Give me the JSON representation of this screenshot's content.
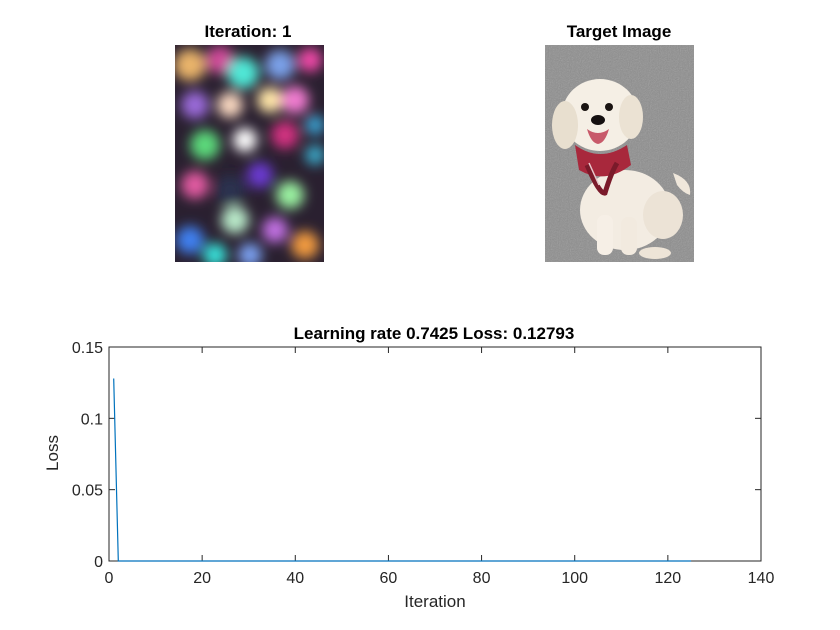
{
  "images": {
    "left_title": "Iteration: 1",
    "right_title": "Target Image"
  },
  "chart_data": {
    "type": "line",
    "title": "Learning rate 0.7425  Loss: 0.12793",
    "xlabel": "Iteration",
    "ylabel": "Loss",
    "xlim": [
      0,
      140
    ],
    "ylim": [
      0,
      0.15
    ],
    "xticks": [
      0,
      20,
      40,
      60,
      80,
      100,
      120,
      140
    ],
    "yticks": [
      0,
      0.05,
      0.1,
      0.15
    ],
    "xtick_labels": [
      "0",
      "20",
      "40",
      "60",
      "80",
      "100",
      "120",
      "140"
    ],
    "ytick_labels": [
      "0",
      "0.05",
      "0.1",
      "0.15"
    ],
    "grid": false,
    "series": [
      {
        "name": "Loss",
        "color": "#0072BD",
        "x": [
          1,
          2,
          3,
          125
        ],
        "y": [
          0.12793,
          0,
          0,
          0
        ]
      }
    ]
  }
}
